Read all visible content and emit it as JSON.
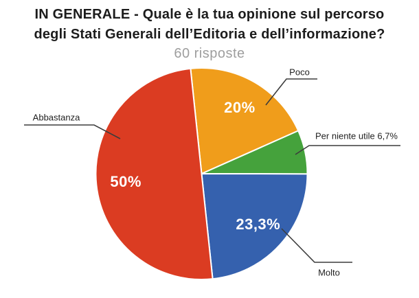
{
  "title": {
    "lines": [
      "IN GENERALE - Quale è la tua opinione sul percorso",
      "degli Stati Generali dell’Editoria e dell’informazione?"
    ]
  },
  "subtitle": "60 risposte",
  "chart_data": {
    "type": "pie",
    "title": "IN GENERALE - Quale è la tua opinione sul percorso degli Stati Generali dell’Editoria e dell’informazione?",
    "responses_count": 60,
    "responses_label": "60 risposte",
    "start_angle_deg": -6,
    "legend_position": "outside-callouts",
    "slices": [
      {
        "label": "Poco",
        "value_pct": 20,
        "inner_label": "20%",
        "outer_label": "Poco",
        "color": "#F09D1B"
      },
      {
        "label": "Per niente utile",
        "value_pct": 6.7,
        "inner_label": "",
        "outer_label": "Per niente utile 6,7%",
        "color": "#45A23C"
      },
      {
        "label": "Molto",
        "value_pct": 23.3,
        "inner_label": "23,3%",
        "outer_label": "Molto",
        "color": "#3561AE"
      },
      {
        "label": "Abbastanza",
        "value_pct": 50,
        "inner_label": "50%",
        "outer_label": "Abbastanza",
        "color": "#DB3C22"
      }
    ],
    "colors": {
      "orange": "#F09D1B",
      "green": "#45A23C",
      "blue": "#3561AE",
      "red": "#DB3C22",
      "inner_pct_text": "#FFFFFF",
      "callout_line": "#3C3C3C",
      "callout_text": "#1F1F1F",
      "title_text": "#1C1C1C",
      "subtitle_text": "#9E9E9E"
    }
  }
}
